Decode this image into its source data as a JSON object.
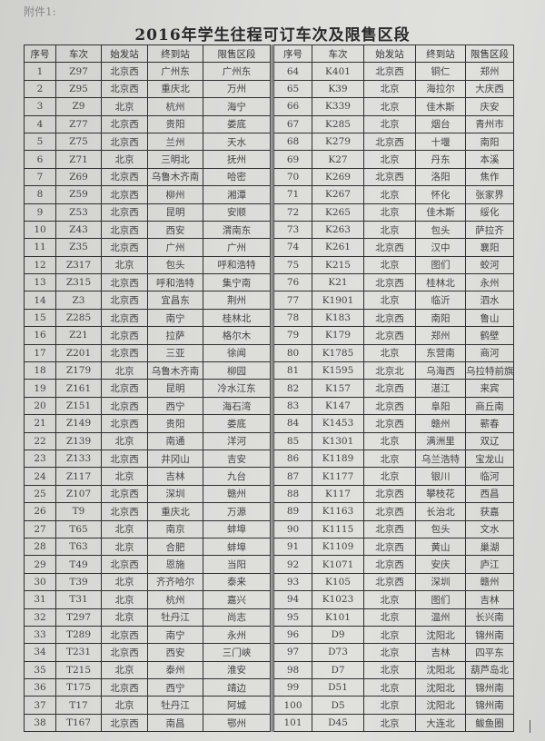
{
  "attachment_label": "附件1:",
  "title": "2016年学生往程可订车次及限售区段",
  "columns": [
    "序号",
    "车次",
    "始发站",
    "终到站",
    "限售区段"
  ],
  "left_rows": [
    [
      "1",
      "Z97",
      "北京西",
      "广州东",
      "广州东"
    ],
    [
      "2",
      "Z95",
      "北京西",
      "重庆北",
      "万州"
    ],
    [
      "3",
      "Z9",
      "北京",
      "杭州",
      "海宁"
    ],
    [
      "4",
      "Z77",
      "北京西",
      "贵阳",
      "娄底"
    ],
    [
      "5",
      "Z75",
      "北京西",
      "兰州",
      "天水"
    ],
    [
      "6",
      "Z71",
      "北京",
      "三明北",
      "抚州"
    ],
    [
      "7",
      "Z69",
      "北京西",
      "乌鲁木齐南",
      "哈密"
    ],
    [
      "8",
      "Z59",
      "北京西",
      "柳州",
      "湘潭"
    ],
    [
      "9",
      "Z53",
      "北京西",
      "昆明",
      "安顺"
    ],
    [
      "10",
      "Z43",
      "北京西",
      "西安",
      "渭南东"
    ],
    [
      "11",
      "Z35",
      "北京西",
      "广州",
      "广州"
    ],
    [
      "12",
      "Z317",
      "北京",
      "包头",
      "呼和浩特"
    ],
    [
      "13",
      "Z315",
      "北京西",
      "呼和浩特",
      "集宁南"
    ],
    [
      "14",
      "Z3",
      "北京西",
      "宜昌东",
      "荆州"
    ],
    [
      "15",
      "Z285",
      "北京西",
      "南宁",
      "桂林北"
    ],
    [
      "16",
      "Z21",
      "北京西",
      "拉萨",
      "格尔木"
    ],
    [
      "17",
      "Z201",
      "北京西",
      "三亚",
      "徐闻"
    ],
    [
      "18",
      "Z179",
      "北京",
      "乌鲁木齐南",
      "柳园"
    ],
    [
      "19",
      "Z161",
      "北京西",
      "昆明",
      "冷水江东"
    ],
    [
      "20",
      "Z151",
      "北京西",
      "西宁",
      "海石湾"
    ],
    [
      "21",
      "Z149",
      "北京西",
      "贵阳",
      "娄底"
    ],
    [
      "22",
      "Z139",
      "北京",
      "南通",
      "洋河"
    ],
    [
      "23",
      "Z133",
      "北京西",
      "井冈山",
      "吉安"
    ],
    [
      "24",
      "Z117",
      "北京",
      "吉林",
      "九台"
    ],
    [
      "25",
      "Z107",
      "北京西",
      "深圳",
      "赣州"
    ],
    [
      "26",
      "T9",
      "北京西",
      "重庆北",
      "万源"
    ],
    [
      "27",
      "T65",
      "北京",
      "南京",
      "蚌埠"
    ],
    [
      "28",
      "T63",
      "北京",
      "合肥",
      "蚌埠"
    ],
    [
      "29",
      "T49",
      "北京西",
      "恩施",
      "当阳"
    ],
    [
      "30",
      "T39",
      "北京",
      "齐齐哈尔",
      "泰来"
    ],
    [
      "31",
      "T31",
      "北京",
      "杭州",
      "嘉兴"
    ],
    [
      "32",
      "T297",
      "北京",
      "牡丹江",
      "尚志"
    ],
    [
      "33",
      "T289",
      "北京西",
      "南宁",
      "永州"
    ],
    [
      "34",
      "T231",
      "北京西",
      "西安",
      "三门峡"
    ],
    [
      "35",
      "T215",
      "北京",
      "泰州",
      "淮安"
    ],
    [
      "36",
      "T175",
      "北京西",
      "西宁",
      "靖边"
    ],
    [
      "37",
      "T17",
      "北京",
      "牡丹江",
      "阿城"
    ],
    [
      "38",
      "T167",
      "北京西",
      "南昌",
      "鄂州"
    ]
  ],
  "right_rows": [
    [
      "64",
      "K401",
      "北京西",
      "铜仁",
      "郑州"
    ],
    [
      "65",
      "K39",
      "北京",
      "海拉尔",
      "大庆西"
    ],
    [
      "66",
      "K339",
      "北京",
      "佳木斯",
      "庆安"
    ],
    [
      "67",
      "K285",
      "北京",
      "烟台",
      "青州市"
    ],
    [
      "68",
      "K279",
      "北京西",
      "十堰",
      "南阳"
    ],
    [
      "69",
      "K27",
      "北京",
      "丹东",
      "本溪"
    ],
    [
      "70",
      "K269",
      "北京西",
      "洛阳",
      "焦作"
    ],
    [
      "71",
      "K267",
      "北京",
      "怀化",
      "张家界"
    ],
    [
      "72",
      "K265",
      "北京",
      "佳木斯",
      "绥化"
    ],
    [
      "73",
      "K263",
      "北京",
      "包头",
      "萨拉齐"
    ],
    [
      "74",
      "K261",
      "北京西",
      "汉中",
      "襄阳"
    ],
    [
      "75",
      "K215",
      "北京",
      "图们",
      "蛟河"
    ],
    [
      "76",
      "K21",
      "北京西",
      "桂林北",
      "永州"
    ],
    [
      "77",
      "K1901",
      "北京",
      "临沂",
      "泗水"
    ],
    [
      "78",
      "K183",
      "北京西",
      "南阳",
      "鲁山"
    ],
    [
      "79",
      "K179",
      "北京西",
      "郑州",
      "鹤壁"
    ],
    [
      "80",
      "K1785",
      "北京",
      "东营南",
      "商河"
    ],
    [
      "81",
      "K1595",
      "北京北",
      "乌海西",
      "乌拉特前旗"
    ],
    [
      "82",
      "K157",
      "北京西",
      "湛江",
      "来宾"
    ],
    [
      "83",
      "K147",
      "北京西",
      "阜阳",
      "商丘南"
    ],
    [
      "84",
      "K1453",
      "北京西",
      "赣州",
      "蕲春"
    ],
    [
      "85",
      "K1301",
      "北京",
      "满洲里",
      "双辽"
    ],
    [
      "86",
      "K1189",
      "北京",
      "乌兰浩特",
      "宝龙山"
    ],
    [
      "87",
      "K1177",
      "北京",
      "银川",
      "临河"
    ],
    [
      "88",
      "K117",
      "北京西",
      "攀枝花",
      "西昌"
    ],
    [
      "89",
      "K1163",
      "北京西",
      "长治北",
      "获嘉"
    ],
    [
      "90",
      "K1115",
      "北京西",
      "包头",
      "文水"
    ],
    [
      "91",
      "K1109",
      "北京西",
      "黄山",
      "巢湖"
    ],
    [
      "92",
      "K1071",
      "北京西",
      "安庆",
      "庐江"
    ],
    [
      "93",
      "K105",
      "北京西",
      "深圳",
      "赣州"
    ],
    [
      "94",
      "K1023",
      "北京",
      "图们",
      "吉林"
    ],
    [
      "95",
      "K101",
      "北京",
      "温州",
      "长兴南"
    ],
    [
      "96",
      "D9",
      "北京",
      "沈阳北",
      "锦州南"
    ],
    [
      "97",
      "D73",
      "北京",
      "吉林",
      "四平东"
    ],
    [
      "98",
      "D7",
      "北京",
      "沈阳北",
      "葫芦岛北"
    ],
    [
      "99",
      "D51",
      "北京",
      "沈阳北",
      "锦州南"
    ],
    [
      "100",
      "D5",
      "北京",
      "沈阳北",
      "锦州南"
    ],
    [
      "101",
      "D45",
      "北京",
      "大连北",
      "鲅鱼圈"
    ]
  ]
}
